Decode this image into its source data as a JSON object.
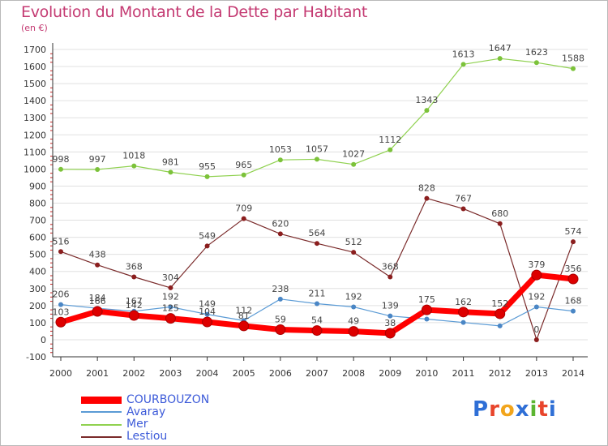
{
  "title": "Evolution du Montant de la Dette par Habitant",
  "subtitle": "(en €)",
  "logo": {
    "text": "Proxiti",
    "colors": [
      "#2f6fd6",
      "#e8452c",
      "#f2a51c",
      "#2f6fd6",
      "#5cb531",
      "#e8452c",
      "#2f6fd6"
    ]
  },
  "chart_data": {
    "type": "line",
    "x": [
      2000,
      2001,
      2002,
      2003,
      2004,
      2005,
      2006,
      2007,
      2008,
      2009,
      2010,
      2011,
      2012,
      2013,
      2014
    ],
    "ylim": [
      -100,
      1700
    ],
    "yticks": [
      -100,
      0,
      100,
      200,
      300,
      400,
      500,
      600,
      700,
      800,
      900,
      1000,
      1100,
      1200,
      1300,
      1400,
      1500,
      1600,
      1700
    ],
    "grid": "horizontal",
    "legend_position": "bottom-left",
    "series": [
      {
        "name": "Mer",
        "color": "#8fd14f",
        "marker": "#7cc23a",
        "width": 1.2,
        "values": [
          998,
          997,
          1018,
          981,
          955,
          965,
          1053,
          1057,
          1027,
          1112,
          1343,
          1613,
          1647,
          1623,
          1588
        ],
        "labels": [
          "998",
          "997",
          "1018",
          "981",
          "955",
          "965",
          "1053",
          "1057",
          "1027",
          "1112",
          "1343",
          "1613",
          "1647",
          "1623",
          "1588"
        ]
      },
      {
        "name": "Lestiou",
        "color": "#7a2a2a",
        "marker": "#8b1e1e",
        "width": 1.2,
        "values": [
          516,
          438,
          368,
          304,
          549,
          709,
          620,
          564,
          512,
          368,
          828,
          767,
          680,
          0,
          574
        ],
        "labels": [
          "516",
          "438",
          "368",
          "304",
          "549",
          "709",
          "620",
          "564",
          "512",
          "368",
          "828",
          "767",
          "680",
          "0",
          "574"
        ]
      },
      {
        "name": "Avaray",
        "color": "#5b9bd5",
        "marker": "#4a86c5",
        "width": 1.2,
        "values": [
          206,
          184,
          167,
          192,
          149,
          112,
          238,
          211,
          192,
          139,
          121,
          101,
          81,
          192,
          168
        ],
        "labels": [
          "206",
          "184",
          "167",
          "192",
          "149",
          "112",
          "238",
          "211",
          "192",
          "139",
          "",
          "",
          "",
          "192",
          "168"
        ]
      },
      {
        "name": "COURBOUZON",
        "color": "#ff0000",
        "marker": "#dd0000",
        "width": 7,
        "values": [
          103,
          166,
          142,
          125,
          104,
          81,
          59,
          54,
          49,
          38,
          175,
          162,
          152,
          379,
          356
        ],
        "labels": [
          "103",
          "166",
          "142",
          "125",
          "104",
          "81",
          "59",
          "54",
          "49",
          "38",
          "175",
          "162",
          "152",
          "379",
          "356"
        ]
      }
    ],
    "legend": [
      "COURBOUZON",
      "Avaray",
      "Mer",
      "Lestiou"
    ]
  }
}
